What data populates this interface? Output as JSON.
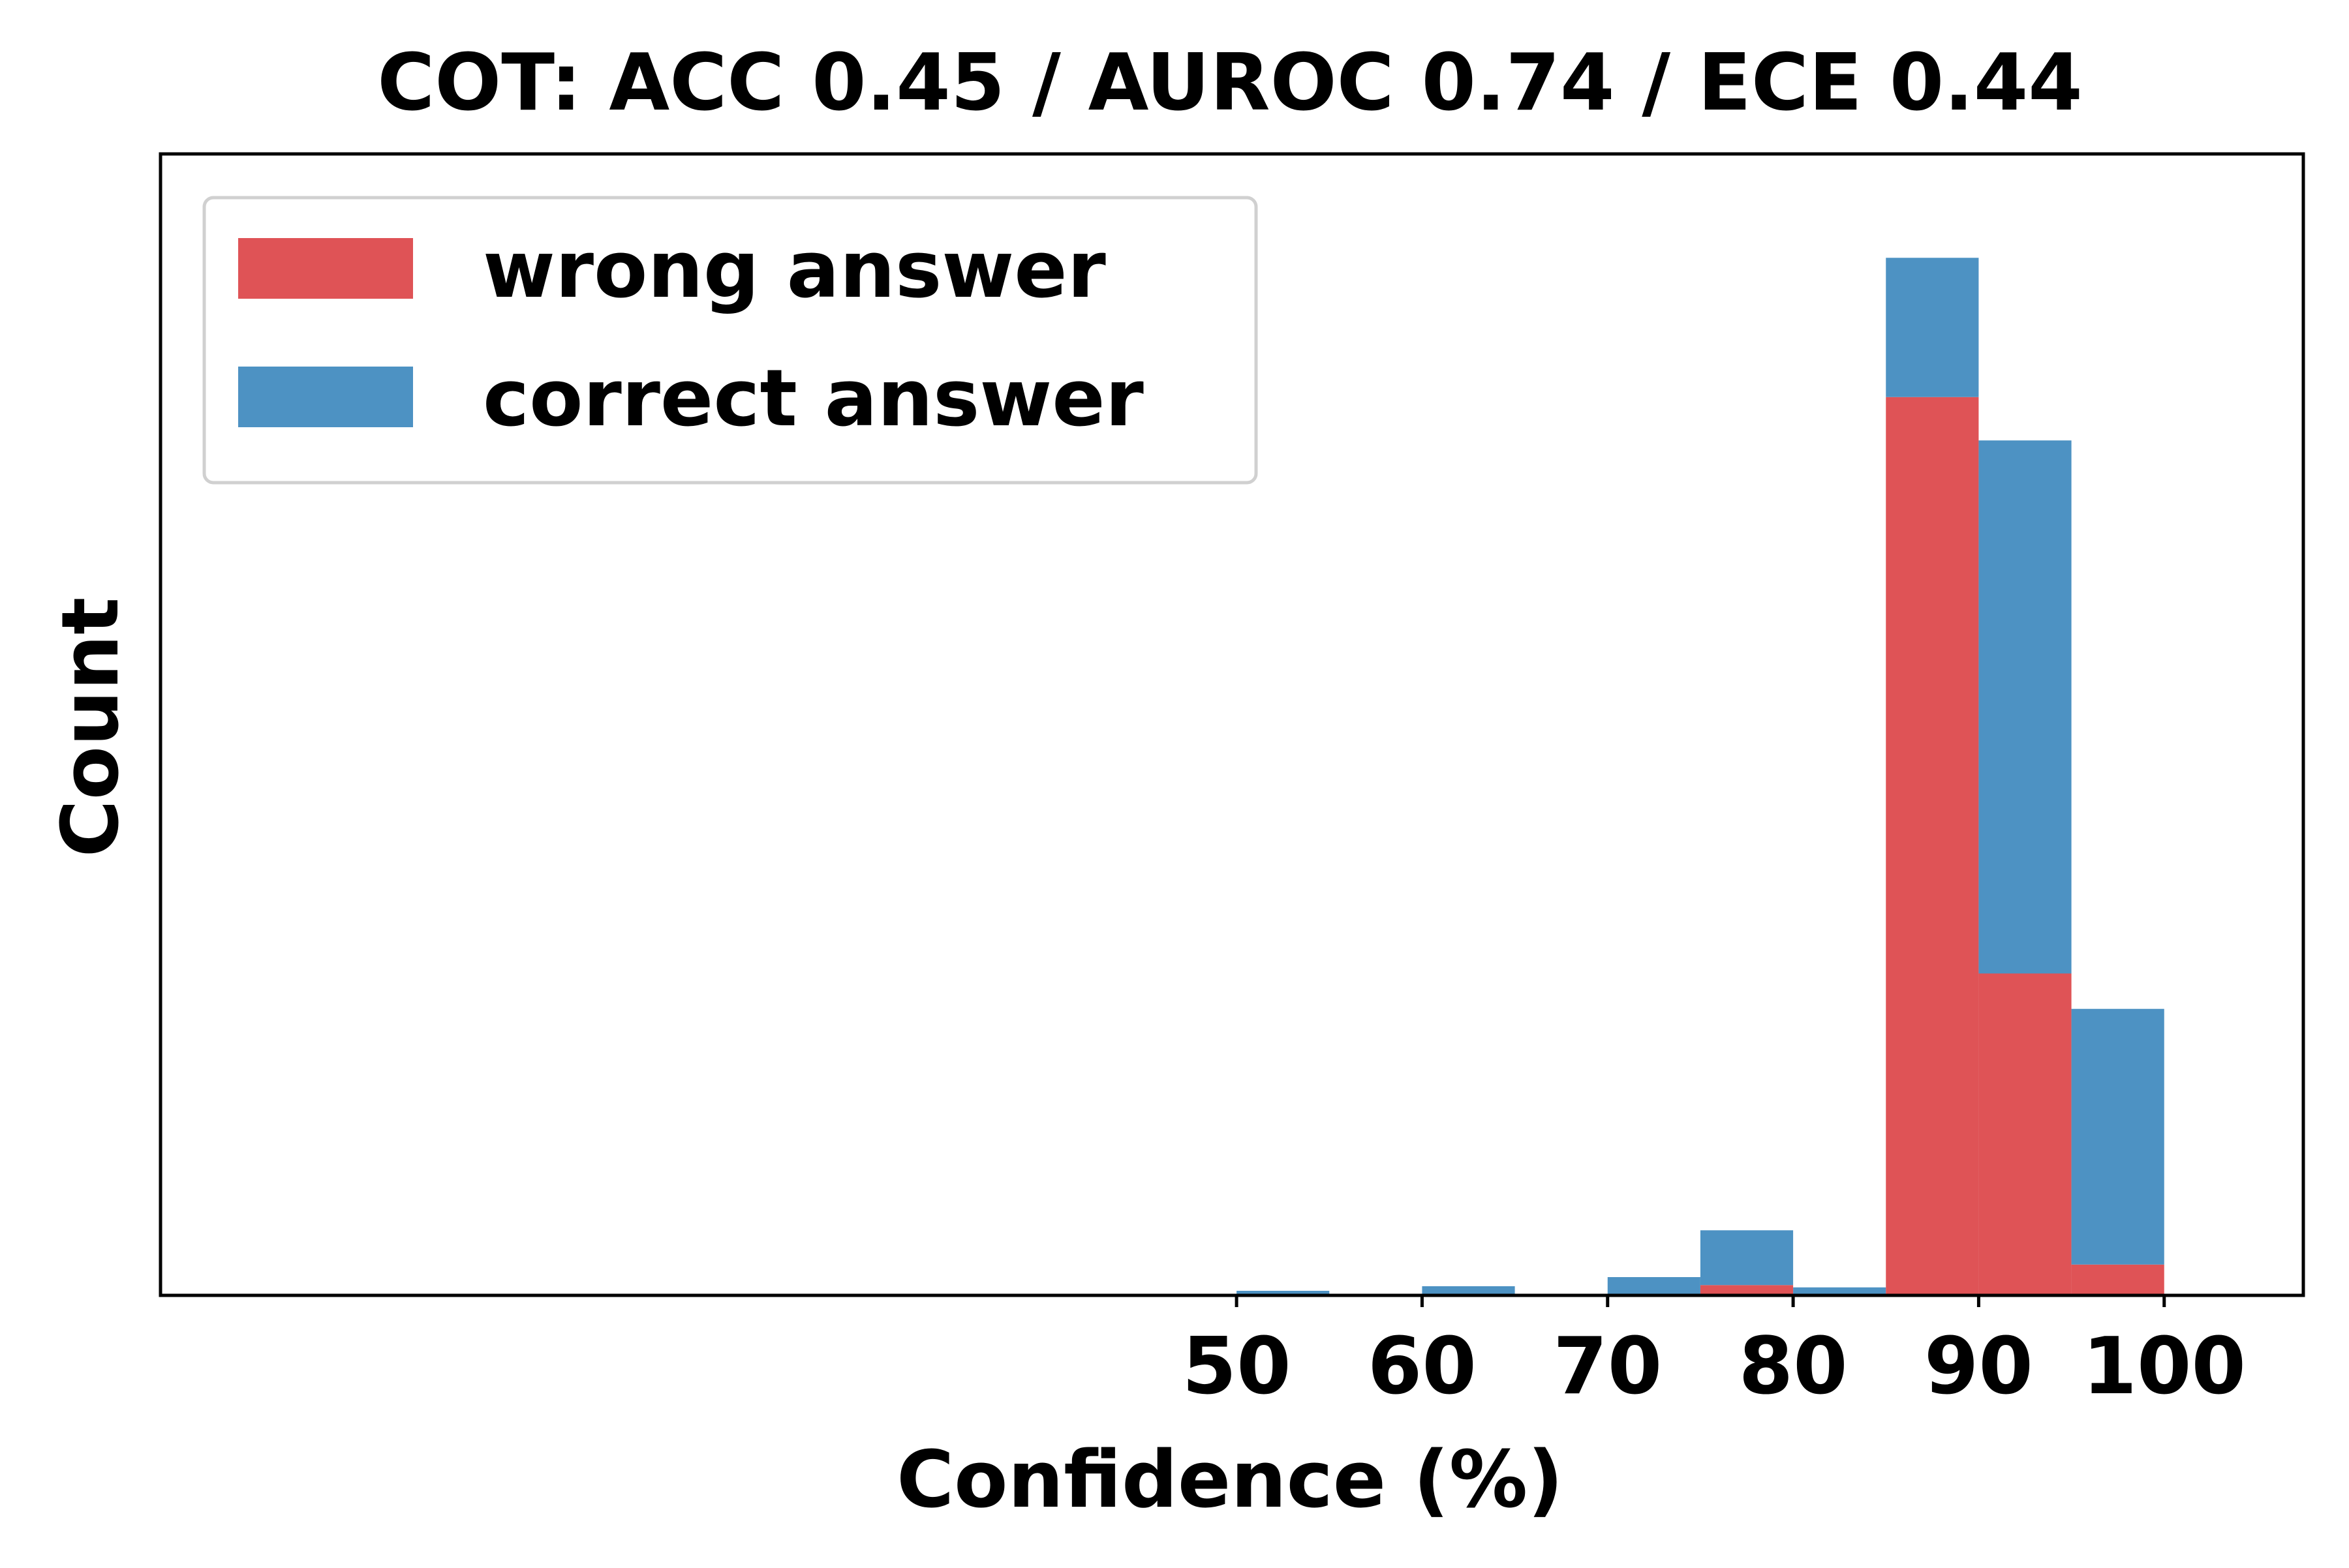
{
  "chart_data": {
    "type": "bar",
    "title": "COT: ACC 0.45 / AUROC 0.74 / ECE 0.44",
    "xlabel": "Confidence (%)",
    "ylabel": "Count",
    "xlim": [
      -8,
      107.5
    ],
    "ylim": [
      0,
      1000
    ],
    "xticks": [
      50,
      60,
      70,
      80,
      90,
      100
    ],
    "stacked": true,
    "bin_width": 5,
    "bins": [
      50,
      60,
      70,
      75,
      80,
      85,
      90,
      95
    ],
    "series": [
      {
        "name": "wrong answer",
        "color": "#df5356",
        "values": [
          0,
          0,
          0,
          9,
          0,
          787,
          282,
          27
        ]
      },
      {
        "name": "correct answer",
        "color": "#4d92c3",
        "values": [
          4,
          8,
          16,
          48,
          7,
          122,
          467,
          224
        ]
      }
    ],
    "legend": {
      "position": "top-left"
    },
    "grid": false
  }
}
